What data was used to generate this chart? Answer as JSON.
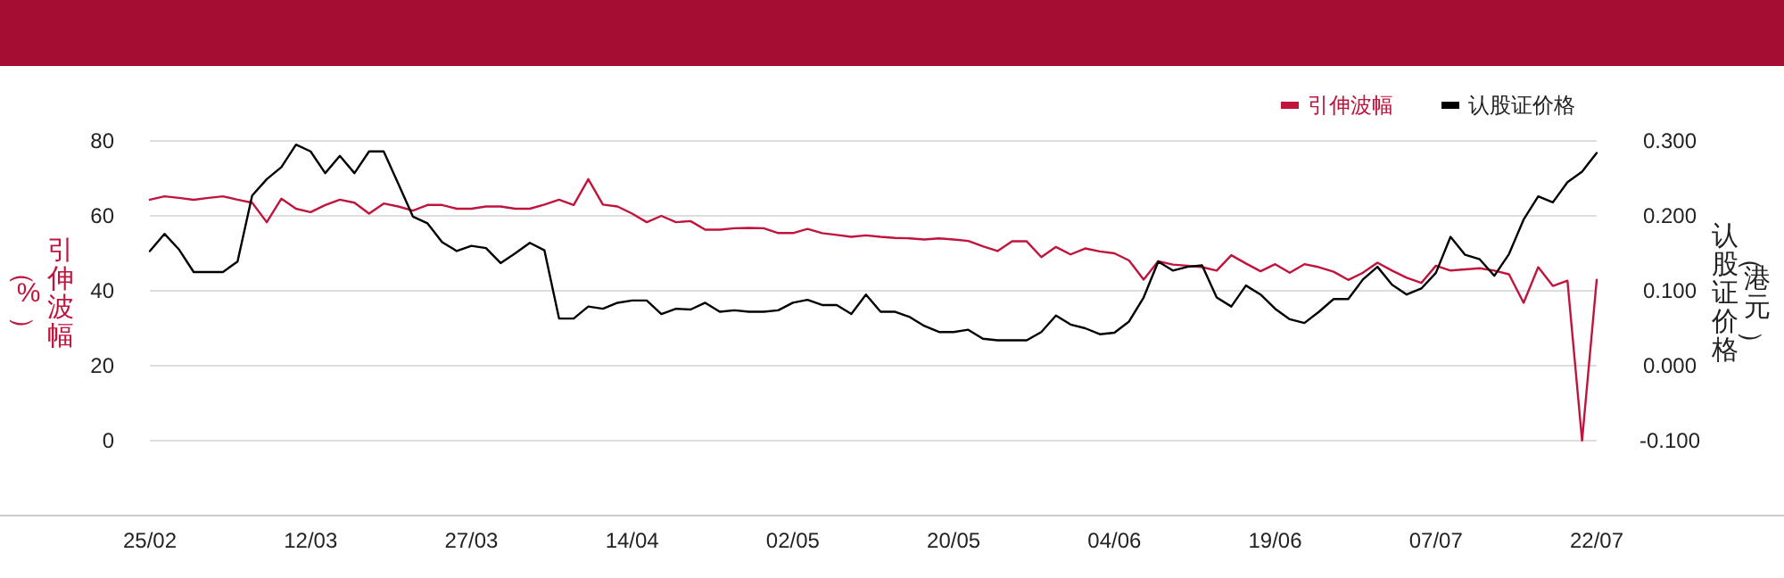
{
  "chart_data": {
    "type": "line",
    "categories": [
      "25/02",
      null,
      null,
      null,
      null,
      null,
      null,
      null,
      null,
      null,
      null,
      "12/03",
      null,
      null,
      null,
      null,
      null,
      null,
      null,
      null,
      null,
      null,
      "27/03",
      null,
      null,
      null,
      null,
      null,
      null,
      null,
      null,
      null,
      null,
      "14/04",
      null,
      null,
      null,
      null,
      null,
      null,
      null,
      null,
      null,
      null,
      "02/05",
      null,
      null,
      null,
      null,
      null,
      null,
      null,
      null,
      null,
      null,
      "20/05",
      null,
      null,
      null,
      null,
      null,
      null,
      null,
      null,
      null,
      null,
      "04/06",
      null,
      null,
      null,
      null,
      null,
      null,
      null,
      null,
      null,
      null,
      "19/06",
      null,
      null,
      null,
      null,
      null,
      null,
      null,
      null,
      null,
      null,
      "07/07",
      null,
      null,
      null,
      null,
      null,
      null,
      null,
      null,
      null,
      null,
      "22/07"
    ],
    "series": [
      {
        "name": "引伸波幅",
        "color": "#c0143c",
        "values": [
          64.3,
          65.2,
          64.8,
          64.3,
          64.8,
          65.2,
          64.3,
          63.5,
          58.3,
          64.6,
          61.9,
          61.0,
          62.9,
          64.3,
          63.5,
          60.6,
          63.3,
          62.5,
          61.4,
          62.9,
          62.9,
          61.9,
          61.9,
          62.5,
          62.5,
          61.9,
          61.9,
          63.0,
          64.3,
          62.9,
          69.8,
          63.0,
          62.5,
          60.6,
          58.3,
          60.0,
          58.3,
          58.6,
          56.3,
          56.3,
          56.7,
          56.8,
          56.7,
          55.4,
          55.4,
          56.5,
          55.4,
          54.9,
          54.4,
          54.8,
          54.4,
          54.1,
          54.0,
          53.7,
          54.0,
          53.7,
          53.3,
          51.9,
          50.6,
          53.2,
          53.2,
          49.0,
          51.7,
          49.7,
          51.3,
          50.5,
          50.0,
          48.1,
          43.0,
          47.9,
          47.0,
          46.7,
          46.3,
          45.4,
          49.5,
          47.3,
          45.2,
          47.1,
          44.8,
          47.1,
          46.3,
          45.1,
          42.9,
          44.8,
          47.5,
          45.4,
          43.5,
          42.1,
          46.7,
          45.4,
          45.7,
          46.0,
          45.4,
          44.4,
          36.8,
          46.3,
          41.3,
          42.7,
          0,
          42.9
        ]
      },
      {
        "name": "认股证价格",
        "color": "#000000",
        "axis": "y2",
        "values": [
          0.153,
          0.176,
          0.155,
          0.125,
          0.125,
          0.125,
          0.139,
          0.227,
          0.249,
          0.265,
          0.295,
          0.286,
          0.257,
          0.28,
          0.257,
          0.286,
          0.286,
          0.243,
          0.199,
          0.19,
          0.165,
          0.153,
          0.16,
          0.157,
          0.137,
          0.15,
          0.164,
          0.154,
          0.063,
          0.063,
          0.079,
          0.076,
          0.084,
          0.087,
          0.087,
          0.069,
          0.076,
          0.075,
          0.084,
          0.072,
          0.074,
          0.072,
          0.072,
          0.074,
          0.084,
          0.088,
          0.081,
          0.081,
          0.069,
          0.095,
          0.072,
          0.072,
          0.065,
          0.053,
          0.045,
          0.045,
          0.048,
          0.036,
          0.034,
          0.034,
          0.034,
          0.045,
          0.067,
          0.055,
          0.05,
          0.042,
          0.044,
          0.059,
          0.091,
          0.139,
          0.127,
          0.132,
          0.134,
          0.091,
          0.079,
          0.107,
          0.095,
          0.076,
          0.062,
          0.057,
          0.072,
          0.089,
          0.089,
          0.115,
          0.132,
          0.108,
          0.095,
          0.103,
          0.124,
          0.172,
          0.148,
          0.142,
          0.12,
          0.149,
          0.195,
          0.226,
          0.218,
          0.245,
          0.259,
          0.284
        ]
      }
    ],
    "ylabel": "引伸波幅（%）",
    "y2label": "认股证价格（港元）",
    "ylim": [
      -20,
      80
    ],
    "yticks": [
      {
        "value": -20,
        "label": null
      },
      0,
      20,
      40,
      60,
      80
    ],
    "y2lim": [
      -0.2,
      0.3
    ],
    "y2ticks": [
      {
        "value": -0.2,
        "label": null
      },
      {
        "value": -0.1,
        "label": "-0.100"
      },
      {
        "value": 0,
        "label": "0.000"
      },
      {
        "value": 0.1,
        "label": "0.100"
      },
      {
        "value": 0.2,
        "label": "0.200"
      },
      {
        "value": 0.3,
        "label": "0.300"
      }
    ],
    "grid": "y",
    "legend": "top right",
    "marker": "none",
    "line_style": "solid"
  }
}
